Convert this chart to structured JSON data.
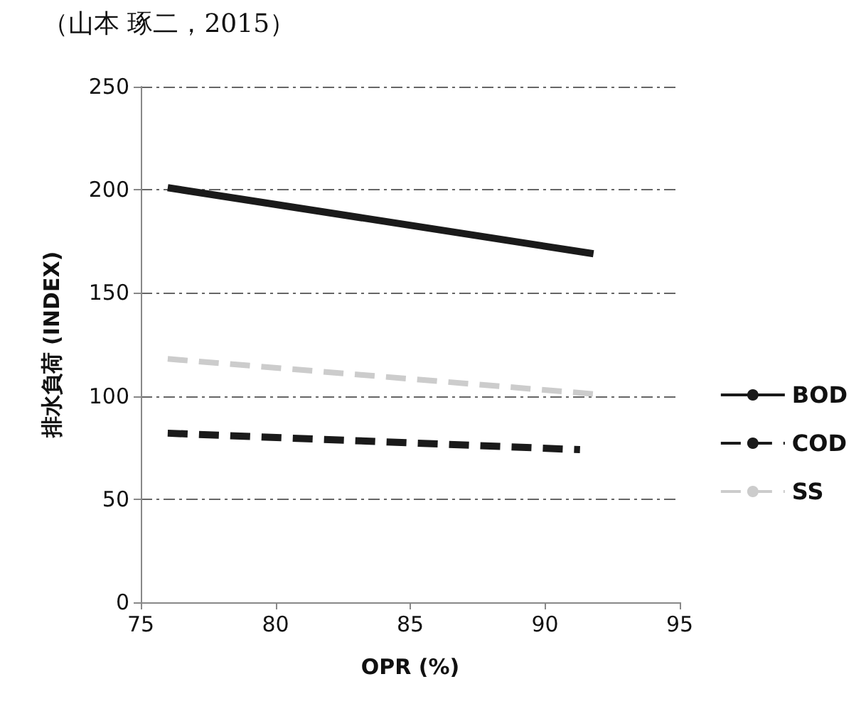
{
  "chart_data": {
    "type": "line",
    "annotations": [
      "（山本 琢二，2015）"
    ],
    "xlabel": "OPR (%)",
    "ylabel": "排水負荷 (INDEX)",
    "series": [
      {
        "name": "BOD",
        "color": "#1a1a1a",
        "line_style": "solid",
        "x": [
          76,
          91.8
        ],
        "values": [
          201,
          169
        ]
      },
      {
        "name": "COD",
        "color": "#1a1a1a",
        "line_style": "dashed",
        "x": [
          76,
          91.3
        ],
        "values": [
          82,
          74
        ]
      },
      {
        "name": "SS",
        "color": "#cccccc",
        "line_style": "dashed",
        "x": [
          76,
          91.8
        ],
        "values": [
          118,
          101
        ]
      }
    ],
    "xlim": [
      75,
      95
    ],
    "xticks": [
      75,
      80,
      85,
      90,
      95
    ],
    "ylim": [
      0,
      250
    ],
    "yticks": [
      0,
      50,
      100,
      150,
      200,
      250
    ],
    "grid": "y",
    "legend": "right",
    "marker": "none"
  }
}
